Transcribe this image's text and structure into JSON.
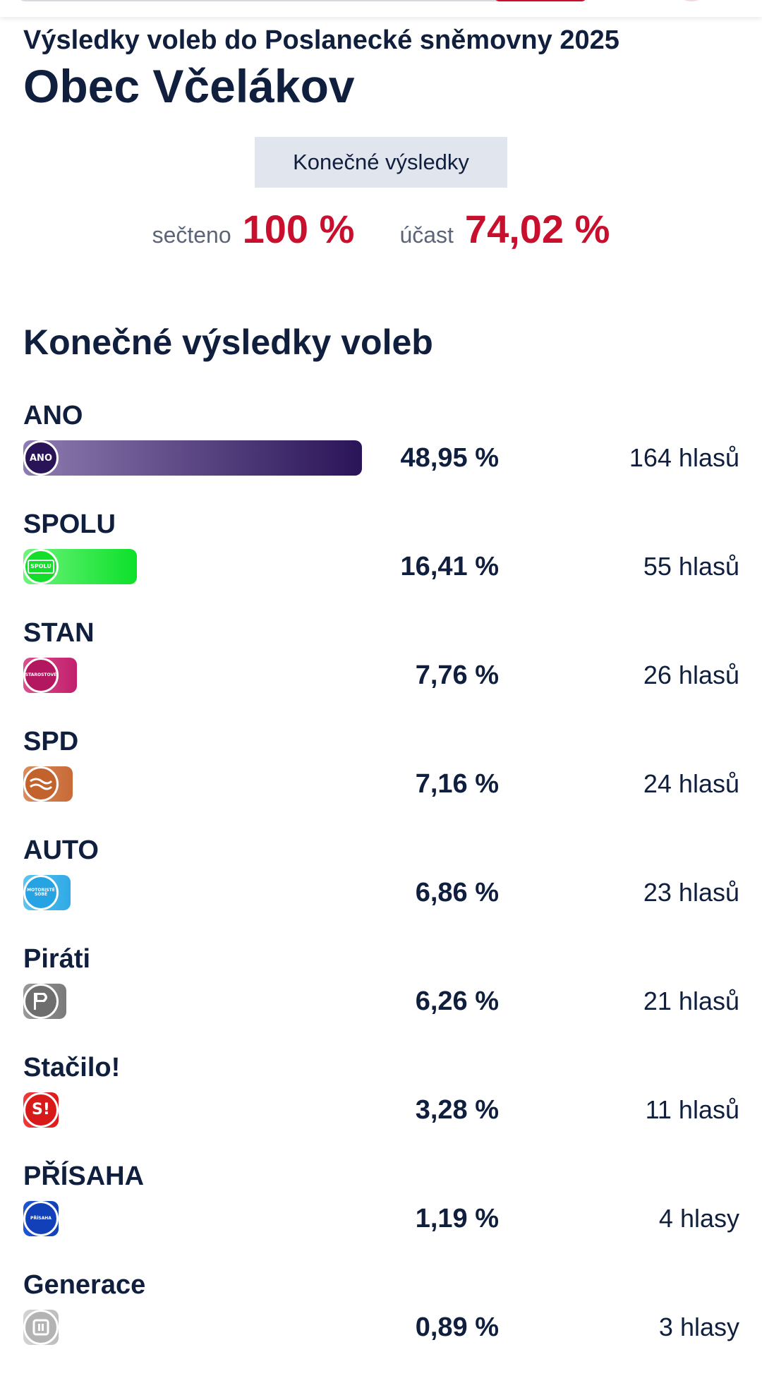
{
  "header": {
    "subtitle": "Výsledky voleb do Poslanecké sněmovny 2025",
    "title": "Obec Včelákov",
    "status_badge": "Konečné výsledky",
    "counted_label": "sečteno",
    "counted_value": "100 %",
    "turnout_label": "účast",
    "turnout_value": "74,02 %"
  },
  "results_heading": "Konečné výsledky voleb",
  "colors": {
    "accent_red": "#c8102e",
    "text_dark": "#0f1f3d",
    "badge_bg": "#e1e5ee"
  },
  "chart_data": {
    "type": "bar",
    "orientation": "horizontal",
    "title": "Konečné výsledky voleb",
    "categories": [
      "ANO",
      "SPOLU",
      "STAN",
      "SPD",
      "AUTO",
      "Piráti",
      "Stačilo!",
      "PŘÍSAHA",
      "Generace"
    ],
    "values": [
      48.95,
      16.41,
      7.76,
      7.16,
      6.86,
      6.26,
      3.28,
      1.19,
      0.89
    ],
    "value_labels": [
      "48,95 %",
      "16,41 %",
      "7,76 %",
      "7,16 %",
      "6,86 %",
      "6,26 %",
      "3,28 %",
      "1,19 %",
      "0,89 %"
    ],
    "votes": [
      164,
      55,
      26,
      24,
      23,
      21,
      11,
      4,
      3
    ],
    "vote_labels": [
      "164 hlasů",
      "55 hlasů",
      "26 hlasů",
      "24 hlasů",
      "23 hlasů",
      "21 hlasů",
      "11 hlasů",
      "4 hlasy",
      "3 hlasy"
    ],
    "series": [
      {
        "values": [
          48.95,
          16.41,
          7.76,
          7.16,
          6.86,
          6.26,
          3.28,
          1.19,
          0.89
        ]
      }
    ],
    "xlim": [
      0,
      48.95
    ],
    "grid": false,
    "logos": [
      {
        "text": "ANO",
        "icon": "ano-logo-icon",
        "colors": [
          "#8e7bb0",
          "#2a1458"
        ],
        "logo_bg": "#2a1458"
      },
      {
        "text": "SPOLU",
        "icon": "spolu-logo-icon",
        "colors": [
          "#6ef47c",
          "#0ce02a"
        ],
        "logo_bg": "#14dd2c"
      },
      {
        "text": "STAROSTOVÉ",
        "icon": "stan-logo-icon",
        "colors": [
          "#d8508e",
          "#c11f6c"
        ],
        "logo_bg": "#b3175f"
      },
      {
        "text": "",
        "icon": "spd-logo-icon",
        "colors": [
          "#d98c5c",
          "#c76a37"
        ],
        "logo_bg": "#c2622d"
      },
      {
        "text": "MOTORISTÉ SOBĚ",
        "icon": "motoriste-logo-icon",
        "colors": [
          "#5ec4ef",
          "#2fa9e6"
        ],
        "logo_bg": "#26a3e3"
      },
      {
        "text": "",
        "icon": "pirati-logo-icon",
        "colors": [
          "#999999",
          "#7a7a7a"
        ],
        "logo_bg": "#6e6e6e"
      },
      {
        "text": "S!",
        "icon": "stacilo-logo-icon",
        "colors": [
          "#ef3b3b",
          "#e01818"
        ],
        "logo_bg": "#d81919"
      },
      {
        "text": "PŘÍSAHA",
        "icon": "prisaha-logo-icon",
        "colors": [
          "#1e56d6",
          "#1240b8"
        ],
        "logo_bg": "#1240b8"
      },
      {
        "text": "",
        "icon": "generace-logo-icon",
        "colors": [
          "#d3d3d3",
          "#bdbdbd"
        ],
        "logo_bg": "#b3b3b3"
      }
    ]
  }
}
